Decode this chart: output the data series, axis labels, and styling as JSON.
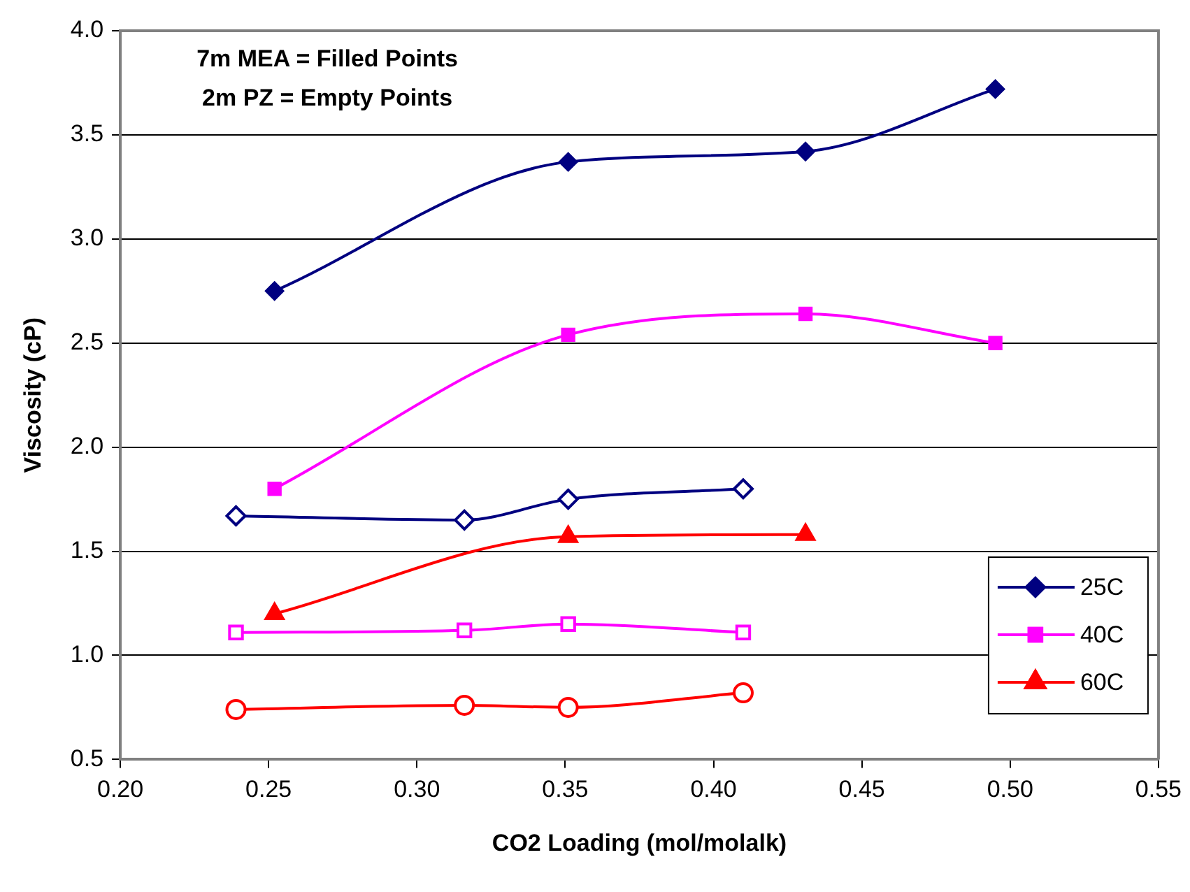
{
  "chart_data": {
    "type": "line",
    "xlabel": "CO2 Loading (mol/molalk)",
    "ylabel": "Viscosity (cP)",
    "annotations": [
      "7m MEA = Filled Points",
      "2m PZ = Empty Points"
    ],
    "xlim": [
      0.2,
      0.55
    ],
    "xticks": [
      {
        "value": 0.2,
        "label": "0.20"
      },
      {
        "value": 0.25,
        "label": "0.25"
      },
      {
        "value": 0.3,
        "label": "0.30"
      },
      {
        "value": 0.35,
        "label": "0.35"
      },
      {
        "value": 0.4,
        "label": "0.40"
      },
      {
        "value": 0.45,
        "label": "0.45"
      },
      {
        "value": 0.5,
        "label": "0.50"
      },
      {
        "value": 0.55,
        "label": "0.55"
      }
    ],
    "ylim": [
      0.5,
      4.0
    ],
    "yticks": [
      {
        "value": 0.5,
        "label": "0.5"
      },
      {
        "value": 1,
        "label": "1.0"
      },
      {
        "value": 1.5,
        "label": "1.5"
      },
      {
        "value": 2,
        "label": "2.0"
      },
      {
        "value": 2.5,
        "label": "2.5"
      },
      {
        "value": 3,
        "label": "3.0"
      },
      {
        "value": 3.5,
        "label": "3.5"
      },
      {
        "value": 4,
        "label": "4.0"
      }
    ],
    "grid": "y",
    "legend": "right",
    "line_style": "solid",
    "series": [
      {
        "name": "25C",
        "color": "#000080",
        "marker": "diamond",
        "x": [
          0.252,
          0.351,
          0.431,
          0.495
        ],
        "values": [
          2.75,
          3.37,
          3.42,
          3.72
        ]
      },
      {
        "name": "40C",
        "color": "#ff00ff",
        "marker": "square",
        "x": [
          0.252,
          0.351,
          0.431,
          0.495
        ],
        "values": [
          1.8,
          2.54,
          2.64,
          2.5
        ]
      },
      {
        "name": "60C",
        "color": "#ff0000",
        "marker": "triangle",
        "x": [
          0.252,
          0.351,
          0.431
        ],
        "values": [
          1.2,
          1.57,
          1.58
        ]
      },
      {
        "color": "#000080",
        "marker": "diamond",
        "x": [
          0.239,
          0.316,
          0.351,
          0.41
        ],
        "values": [
          1.67,
          1.65,
          1.75,
          1.8
        ]
      },
      {
        "color": "#ff00ff",
        "marker": "square",
        "x": [
          0.239,
          0.316,
          0.351,
          0.41
        ],
        "values": [
          1.11,
          1.12,
          1.15,
          1.11
        ]
      },
      {
        "color": "#ff0000",
        "marker": "circle",
        "x": [
          0.239,
          0.316,
          0.351,
          0.41
        ],
        "values": [
          0.74,
          0.76,
          0.75,
          0.82
        ]
      }
    ]
  }
}
